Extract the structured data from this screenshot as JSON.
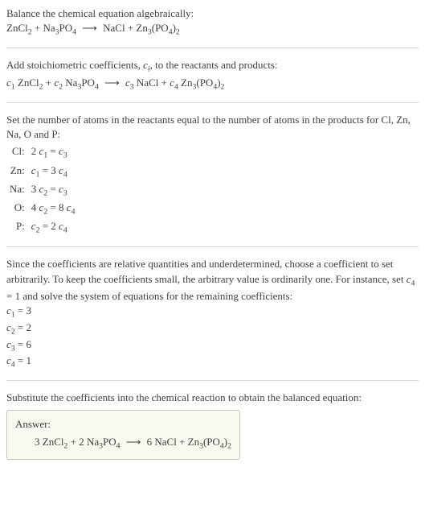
{
  "section1": {
    "title": "Balance the chemical equation algebraically:",
    "eq_lhs_1": "ZnCl",
    "eq_lhs_1_sub": "2",
    "plus1": " + ",
    "eq_lhs_2": "Na",
    "eq_lhs_2_sub": "3",
    "eq_lhs_2b": "PO",
    "eq_lhs_2b_sub": "4",
    "arrow": "⟶",
    "eq_rhs_1": "NaCl + Zn",
    "eq_rhs_1_sub": "3",
    "eq_rhs_1b": "(PO",
    "eq_rhs_1b_sub": "4",
    "eq_rhs_1c": ")",
    "eq_rhs_1c_sub": "2"
  },
  "section2": {
    "title_a": "Add stoichiometric coefficients, ",
    "title_c": "c",
    "title_i": "i",
    "title_b": ", to the reactants and products:",
    "c1": "c",
    "c1n": "1",
    "sp1": " ZnCl",
    "sp1s": "2",
    "plus1": " + ",
    "c2": "c",
    "c2n": "2",
    "sp2": " Na",
    "sp2s": "3",
    "sp2b": "PO",
    "sp2bs": "4",
    "arrow": "⟶",
    "c3": "c",
    "c3n": "3",
    "sp3": " NaCl + ",
    "c4": "c",
    "c4n": "4",
    "sp4": " Zn",
    "sp4s": "3",
    "sp4b": "(PO",
    "sp4bs": "4",
    "sp4c": ")",
    "sp4cs": "2"
  },
  "section3": {
    "title": "Set the number of atoms in the reactants equal to the number of atoms in the products for Cl, Zn, Na, O and P:",
    "rows": [
      {
        "label": "Cl:",
        "lhs_coef": "2 ",
        "lhs_c": "c",
        "lhs_n": "1",
        "eq": " = ",
        "rhs_coef": "",
        "rhs_c": "c",
        "rhs_n": "3"
      },
      {
        "label": "Zn:",
        "lhs_coef": "",
        "lhs_c": "c",
        "lhs_n": "1",
        "eq": " = 3 ",
        "rhs_coef": "",
        "rhs_c": "c",
        "rhs_n": "4"
      },
      {
        "label": "Na:",
        "lhs_coef": "3 ",
        "lhs_c": "c",
        "lhs_n": "2",
        "eq": " = ",
        "rhs_coef": "",
        "rhs_c": "c",
        "rhs_n": "3"
      },
      {
        "label": "O:",
        "lhs_coef": "4 ",
        "lhs_c": "c",
        "lhs_n": "2",
        "eq": " = 8 ",
        "rhs_coef": "",
        "rhs_c": "c",
        "rhs_n": "4"
      },
      {
        "label": "P:",
        "lhs_coef": "",
        "lhs_c": "c",
        "lhs_n": "2",
        "eq": " = 2 ",
        "rhs_coef": "",
        "rhs_c": "c",
        "rhs_n": "4"
      }
    ]
  },
  "section4": {
    "para_a": "Since the coefficients are relative quantities and underdetermined, choose a coefficient to set arbitrarily. To keep the coefficients small, the arbitrary value is ordinarily one. For instance, set ",
    "c4": "c",
    "c4n": "4",
    "para_b": " = 1 and solve the system of equations for the remaining coefficients:",
    "lines": [
      {
        "c": "c",
        "n": "1",
        "v": " = 3"
      },
      {
        "c": "c",
        "n": "2",
        "v": " = 2"
      },
      {
        "c": "c",
        "n": "3",
        "v": " = 6"
      },
      {
        "c": "c",
        "n": "4",
        "v": " = 1"
      }
    ]
  },
  "section5": {
    "title": "Substitute the coefficients into the chemical reaction to obtain the balanced equation:",
    "answer_label": "Answer:",
    "a1": "3 ZnCl",
    "a1s": "2",
    "a_plus1": " + 2 Na",
    "a2s": "3",
    "a2b": "PO",
    "a2bs": "4",
    "arrow": "⟶",
    "a3": "6 NaCl + Zn",
    "a3s": "3",
    "a3b": "(PO",
    "a3bs": "4",
    "a3c": ")",
    "a3cs": "2"
  }
}
